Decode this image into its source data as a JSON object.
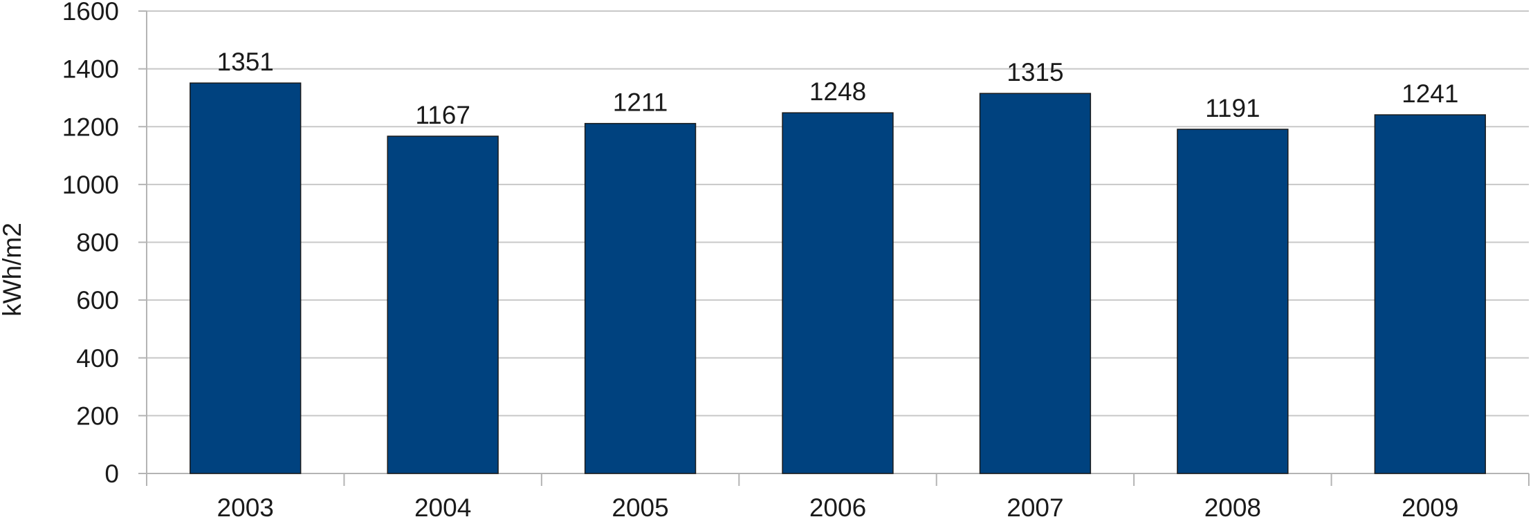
{
  "chart_data": {
    "type": "bar",
    "categories": [
      "2003",
      "2004",
      "2005",
      "2006",
      "2007",
      "2008",
      "2009"
    ],
    "values": [
      1351,
      1167,
      1211,
      1248,
      1315,
      1191,
      1241
    ],
    "data_labels": [
      "1351",
      "1167",
      "1211",
      "1248",
      "1315",
      "1191",
      "1241"
    ],
    "title": "",
    "xlabel": "",
    "ylabel": "kWh/m2",
    "ylim": [
      0,
      1600
    ],
    "yticks": [
      0,
      200,
      400,
      600,
      800,
      1000,
      1200,
      1400,
      1600
    ],
    "ytick_labels": [
      "0",
      "200",
      "400",
      "600",
      "800",
      "1000",
      "1200",
      "1400",
      "1600"
    ],
    "grid": true,
    "legend": "none",
    "bar_color": "#00427F"
  }
}
